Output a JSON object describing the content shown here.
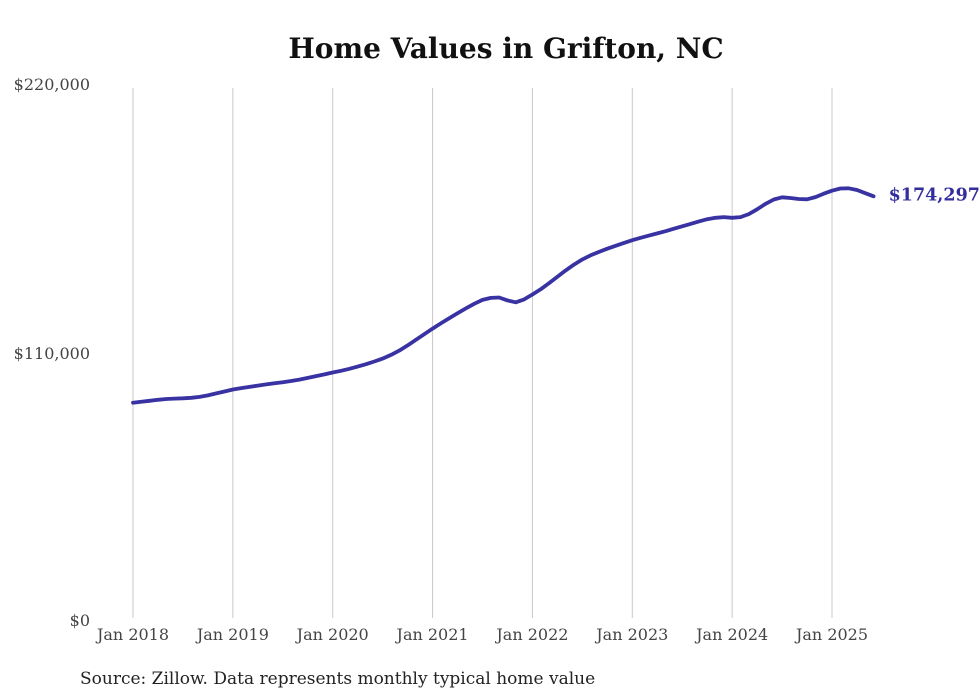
{
  "title": "Home Values in Grifton, NC",
  "source_note": "Source: Zillow. Data represents monthly typical home value",
  "end_label": "$174,297",
  "colors": {
    "line": "#3832a2",
    "end_label": "#332e9e",
    "grid": "#c9c9c9",
    "axis_text": "#444444",
    "title": "#111111",
    "source_text": "#222222",
    "background": "#ffffff"
  },
  "chart_data": {
    "type": "line",
    "title": "Home Values in Grifton, NC",
    "series_name": "Typical home value (monthly)",
    "x_start": "2018-01",
    "x_end": "2025-06",
    "x_interval": "1 month",
    "months_per_tick": 12,
    "x_tick_labels": [
      "Jan 2018",
      "Jan 2019",
      "Jan 2020",
      "Jan 2021",
      "Jan 2022",
      "Jan 2023",
      "Jan 2024",
      "Jan 2025"
    ],
    "y_tick_labels": [
      "$0",
      "$110,000",
      "$220,000"
    ],
    "y_ticks": [
      0,
      110000,
      220000
    ],
    "ylim": [
      0,
      220000
    ],
    "grid": "vertical-only",
    "legend": "none",
    "final_value": 174297,
    "values": [
      89600,
      90000,
      90400,
      90800,
      91100,
      91300,
      91400,
      91600,
      92000,
      92600,
      93400,
      94200,
      95000,
      95600,
      96100,
      96600,
      97100,
      97600,
      98000,
      98500,
      99100,
      99800,
      100500,
      101200,
      102000,
      102700,
      103500,
      104400,
      105400,
      106500,
      107700,
      109200,
      111000,
      113100,
      115400,
      117700,
      120000,
      122200,
      124300,
      126300,
      128300,
      130200,
      131800,
      132600,
      132800,
      131600,
      130800,
      132000,
      134000,
      136200,
      138700,
      141300,
      143900,
      146300,
      148400,
      150100,
      151500,
      152800,
      154000,
      155200,
      156300,
      157300,
      158200,
      159100,
      160000,
      161000,
      162000,
      163000,
      164000,
      164900,
      165500,
      165800,
      165500,
      165800,
      167000,
      169000,
      171200,
      173000,
      173900,
      173600,
      173200,
      173100,
      174000,
      175400,
      176600,
      177500,
      177600,
      176900,
      175600,
      174297
    ]
  }
}
